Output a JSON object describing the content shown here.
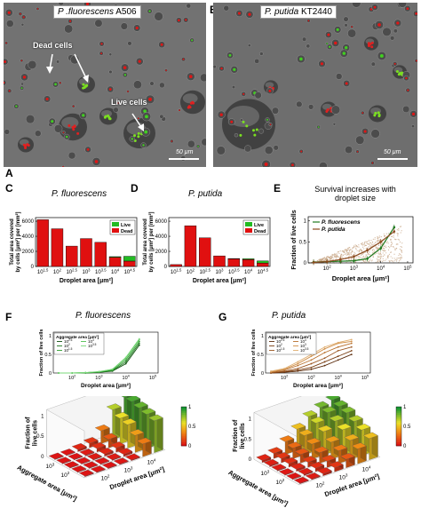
{
  "panels": {
    "A": {
      "letter": "A",
      "title_italic": "P .fluorescens",
      "title_plain": " A506",
      "callouts": [
        "Dead cells",
        "Live cells"
      ],
      "scale_label": "50 μm"
    },
    "B": {
      "letter": "B",
      "title_italic": "P. putida",
      "title_plain": " KT2440",
      "scale_label": "50 μm"
    },
    "C": {
      "letter": "C",
      "title": "P. fluorescens"
    },
    "D": {
      "letter": "D",
      "title": "P. putida"
    },
    "E": {
      "letter": "E",
      "title_line1": "Survival increases with",
      "title_line2": "droplet size"
    },
    "F": {
      "letter": "F",
      "title": "P. fluorescens"
    },
    "G": {
      "letter": "G",
      "title": "P. putida"
    }
  },
  "colors": {
    "live": "#22bb22",
    "dead": "#e01010",
    "fluorescens": "#1f7a1f",
    "putida": "#8b4a1f",
    "scatter": "#c9a98a"
  },
  "chart_data": [
    {
      "id": "C",
      "type": "bar",
      "title": "P. fluorescens",
      "categories": [
        "10^1.5",
        "10^2",
        "10^2.5",
        "10^3",
        "10^3.5",
        "10^4",
        "10^4.5"
      ],
      "series": [
        {
          "name": "Live",
          "values": [
            0,
            0,
            0,
            0,
            0,
            100,
            650
          ]
        },
        {
          "name": "Dead",
          "values": [
            6200,
            5000,
            2700,
            3700,
            3200,
            1200,
            700
          ]
        }
      ],
      "stacked": true,
      "xlabel": "Droplet area [μm²]",
      "ylabel": "Total area covered by cells [μm²] per [mm²]",
      "ylim": [
        0,
        6000
      ],
      "yticks": [
        0,
        2000,
        4000,
        6000
      ],
      "legend": "top-right"
    },
    {
      "id": "D",
      "type": "bar",
      "title": "P. putida",
      "categories": [
        "10^1.5",
        "10^2",
        "10^2.5",
        "10^3",
        "10^3.5",
        "10^4",
        "10^4.5"
      ],
      "series": [
        {
          "name": "Live",
          "values": [
            0,
            0,
            0,
            0,
            50,
            120,
            280
          ]
        },
        {
          "name": "Dead",
          "values": [
            250,
            5400,
            3800,
            1400,
            1000,
            900,
            450
          ]
        }
      ],
      "stacked": true,
      "xlabel": "Droplet area [μm²]",
      "ylabel": "Total area covered by cells [μm²] per [mm²]",
      "ylim": [
        0,
        6000
      ],
      "yticks": [
        0,
        2000,
        4000,
        6000
      ],
      "legend": "top-right"
    },
    {
      "id": "E",
      "type": "line",
      "title": "Survival increases with droplet size",
      "x_log10": [
        1.5,
        2,
        2.5,
        3,
        3.5,
        4,
        4.5
      ],
      "series": [
        {
          "name": "P. fluorescens",
          "values": [
            0.02,
            0.03,
            0.04,
            0.05,
            0.1,
            0.35,
            0.85
          ]
        },
        {
          "name": "P. putida",
          "values": [
            0.01,
            0.03,
            0.08,
            0.15,
            0.3,
            0.5,
            0.75
          ]
        }
      ],
      "xlabel": "Droplet area [μm²]",
      "ylabel": "Fraction of live cells",
      "xticks": [
        "10^2",
        "10^3",
        "10^4",
        "10^5"
      ],
      "yticks": [
        "0",
        "0.5",
        "1"
      ],
      "ylim": [
        0,
        1
      ],
      "legend": "top-left"
    },
    {
      "id": "F-line",
      "type": "line",
      "title": "P. fluorescens",
      "legend_title": "Aggregate area [μm²]",
      "legend": [
        "10^2.5",
        "10^2",
        "10^1.5",
        "10^3",
        "10^3.5"
      ],
      "x_log10": [
        1.5,
        2,
        2.5,
        3,
        3.5,
        4,
        4.5
      ],
      "series": [
        {
          "name": "10^1.5",
          "values": [
            0,
            0,
            0,
            0.02,
            0.05,
            0.25,
            0.75
          ]
        },
        {
          "name": "10^2",
          "values": [
            0,
            0,
            0,
            0.02,
            0.06,
            0.3,
            0.8
          ]
        },
        {
          "name": "10^2.5",
          "values": [
            0,
            0,
            0.01,
            0.03,
            0.08,
            0.35,
            0.85
          ]
        },
        {
          "name": "10^3",
          "values": [
            0,
            0,
            0.01,
            0.03,
            0.1,
            0.4,
            0.9
          ]
        },
        {
          "name": "10^3.5",
          "values": [
            0,
            0,
            0.01,
            0.04,
            0.1,
            0.42,
            0.92
          ]
        }
      ],
      "xlabel": "Droplet area [μm²]",
      "ylabel": "Fraction of live cells",
      "xticks": [
        "10^2",
        "10^3",
        "10^4",
        "10^5"
      ],
      "yticks": [
        "0",
        "0.5",
        "1"
      ]
    },
    {
      "id": "G-line",
      "type": "line",
      "title": "P. putida",
      "legend_title": "Aggregate area [μm²]",
      "legend": [
        "10^2.5",
        "10^2",
        "10^1.5",
        "10^4",
        "10^3",
        "10^3.5"
      ],
      "x_log10": [
        1.5,
        2,
        2.5,
        3,
        3.5,
        4,
        4.5
      ],
      "series": [
        {
          "name": "10^1.5",
          "values": [
            0,
            0.02,
            0.05,
            0.1,
            0.2,
            0.35,
            0.5
          ]
        },
        {
          "name": "10^2",
          "values": [
            0,
            0.03,
            0.08,
            0.15,
            0.3,
            0.45,
            0.6
          ]
        },
        {
          "name": "10^2.5",
          "values": [
            0.01,
            0.05,
            0.12,
            0.25,
            0.4,
            0.6,
            0.7
          ]
        },
        {
          "name": "10^3",
          "values": [
            0.02,
            0.08,
            0.2,
            0.35,
            0.55,
            0.7,
            0.8
          ]
        },
        {
          "name": "10^3.5",
          "values": [
            0.03,
            0.1,
            0.25,
            0.45,
            0.65,
            0.8,
            0.85
          ]
        },
        {
          "name": "10^4",
          "values": [
            0.05,
            0.12,
            0.3,
            0.5,
            0.7,
            0.82,
            0.9
          ]
        }
      ],
      "xlabel": "Droplet area [μm²]",
      "ylabel": "Fraction of live cells",
      "xticks": [
        "10^2",
        "10^3",
        "10^4",
        "10^5"
      ],
      "yticks": [
        "0",
        "0.5",
        "1"
      ]
    },
    {
      "id": "F-3d",
      "type": "heatmap",
      "rows_aggregate_log10": [
        1.5,
        2,
        2.5,
        3,
        3.5
      ],
      "cols_droplet_log10": [
        1.5,
        2,
        2.5,
        3,
        3.5,
        4,
        4.5
      ],
      "values": [
        [
          0,
          0,
          0,
          0.01,
          0.02,
          0.3,
          0.75
        ],
        [
          0,
          0,
          0,
          0.02,
          0.05,
          0.4,
          0.8
        ],
        [
          0,
          0,
          0.02,
          0.05,
          0.1,
          0.55,
          0.85
        ],
        [
          0,
          0,
          0.02,
          0.08,
          0.2,
          0.6,
          0.9
        ],
        [
          0,
          0,
          0.05,
          0.1,
          0.3,
          0.7,
          0.9
        ]
      ],
      "xlabel": "Droplet area [μm²]",
      "ylabel": "Aggregate area [μm²]",
      "zlabel": "Fraction of live cells",
      "colorbar_ticks": [
        "0",
        "0.5",
        "1"
      ],
      "x_ticks": [
        "10^2",
        "10^3",
        "10^4"
      ],
      "y_ticks": [
        "10^2",
        "10^3"
      ],
      "z_ticks": [
        "0",
        "0.5",
        "1"
      ]
    },
    {
      "id": "G-3d",
      "type": "heatmap",
      "rows_aggregate_log10": [
        1.5,
        2,
        2.5,
        3,
        3.5,
        4
      ],
      "cols_droplet_log10": [
        1.5,
        2,
        2.5,
        3,
        3.5,
        4,
        4.5
      ],
      "values": [
        [
          0,
          0.02,
          0.05,
          0.1,
          0.2,
          0.35,
          0.5
        ],
        [
          0,
          0.03,
          0.08,
          0.15,
          0.3,
          0.45,
          0.6
        ],
        [
          0.01,
          0.05,
          0.12,
          0.25,
          0.4,
          0.6,
          0.7
        ],
        [
          0.02,
          0.08,
          0.2,
          0.35,
          0.55,
          0.7,
          0.8
        ],
        [
          0.03,
          0.1,
          0.25,
          0.45,
          0.65,
          0.8,
          0.85
        ],
        [
          0.05,
          0.12,
          0.3,
          0.5,
          0.7,
          0.82,
          0.9
        ]
      ],
      "xlabel": "Droplet area [μm²]",
      "ylabel": "Aggregate area [μm²]",
      "zlabel": "Fraction of live cells",
      "colorbar_ticks": [
        "0",
        "0.5",
        "1"
      ],
      "x_ticks": [
        "10^2",
        "10^3",
        "10^4"
      ],
      "y_ticks": [
        "10^2",
        "10^3"
      ],
      "z_ticks": [
        "0",
        "0.5",
        "1"
      ]
    }
  ]
}
